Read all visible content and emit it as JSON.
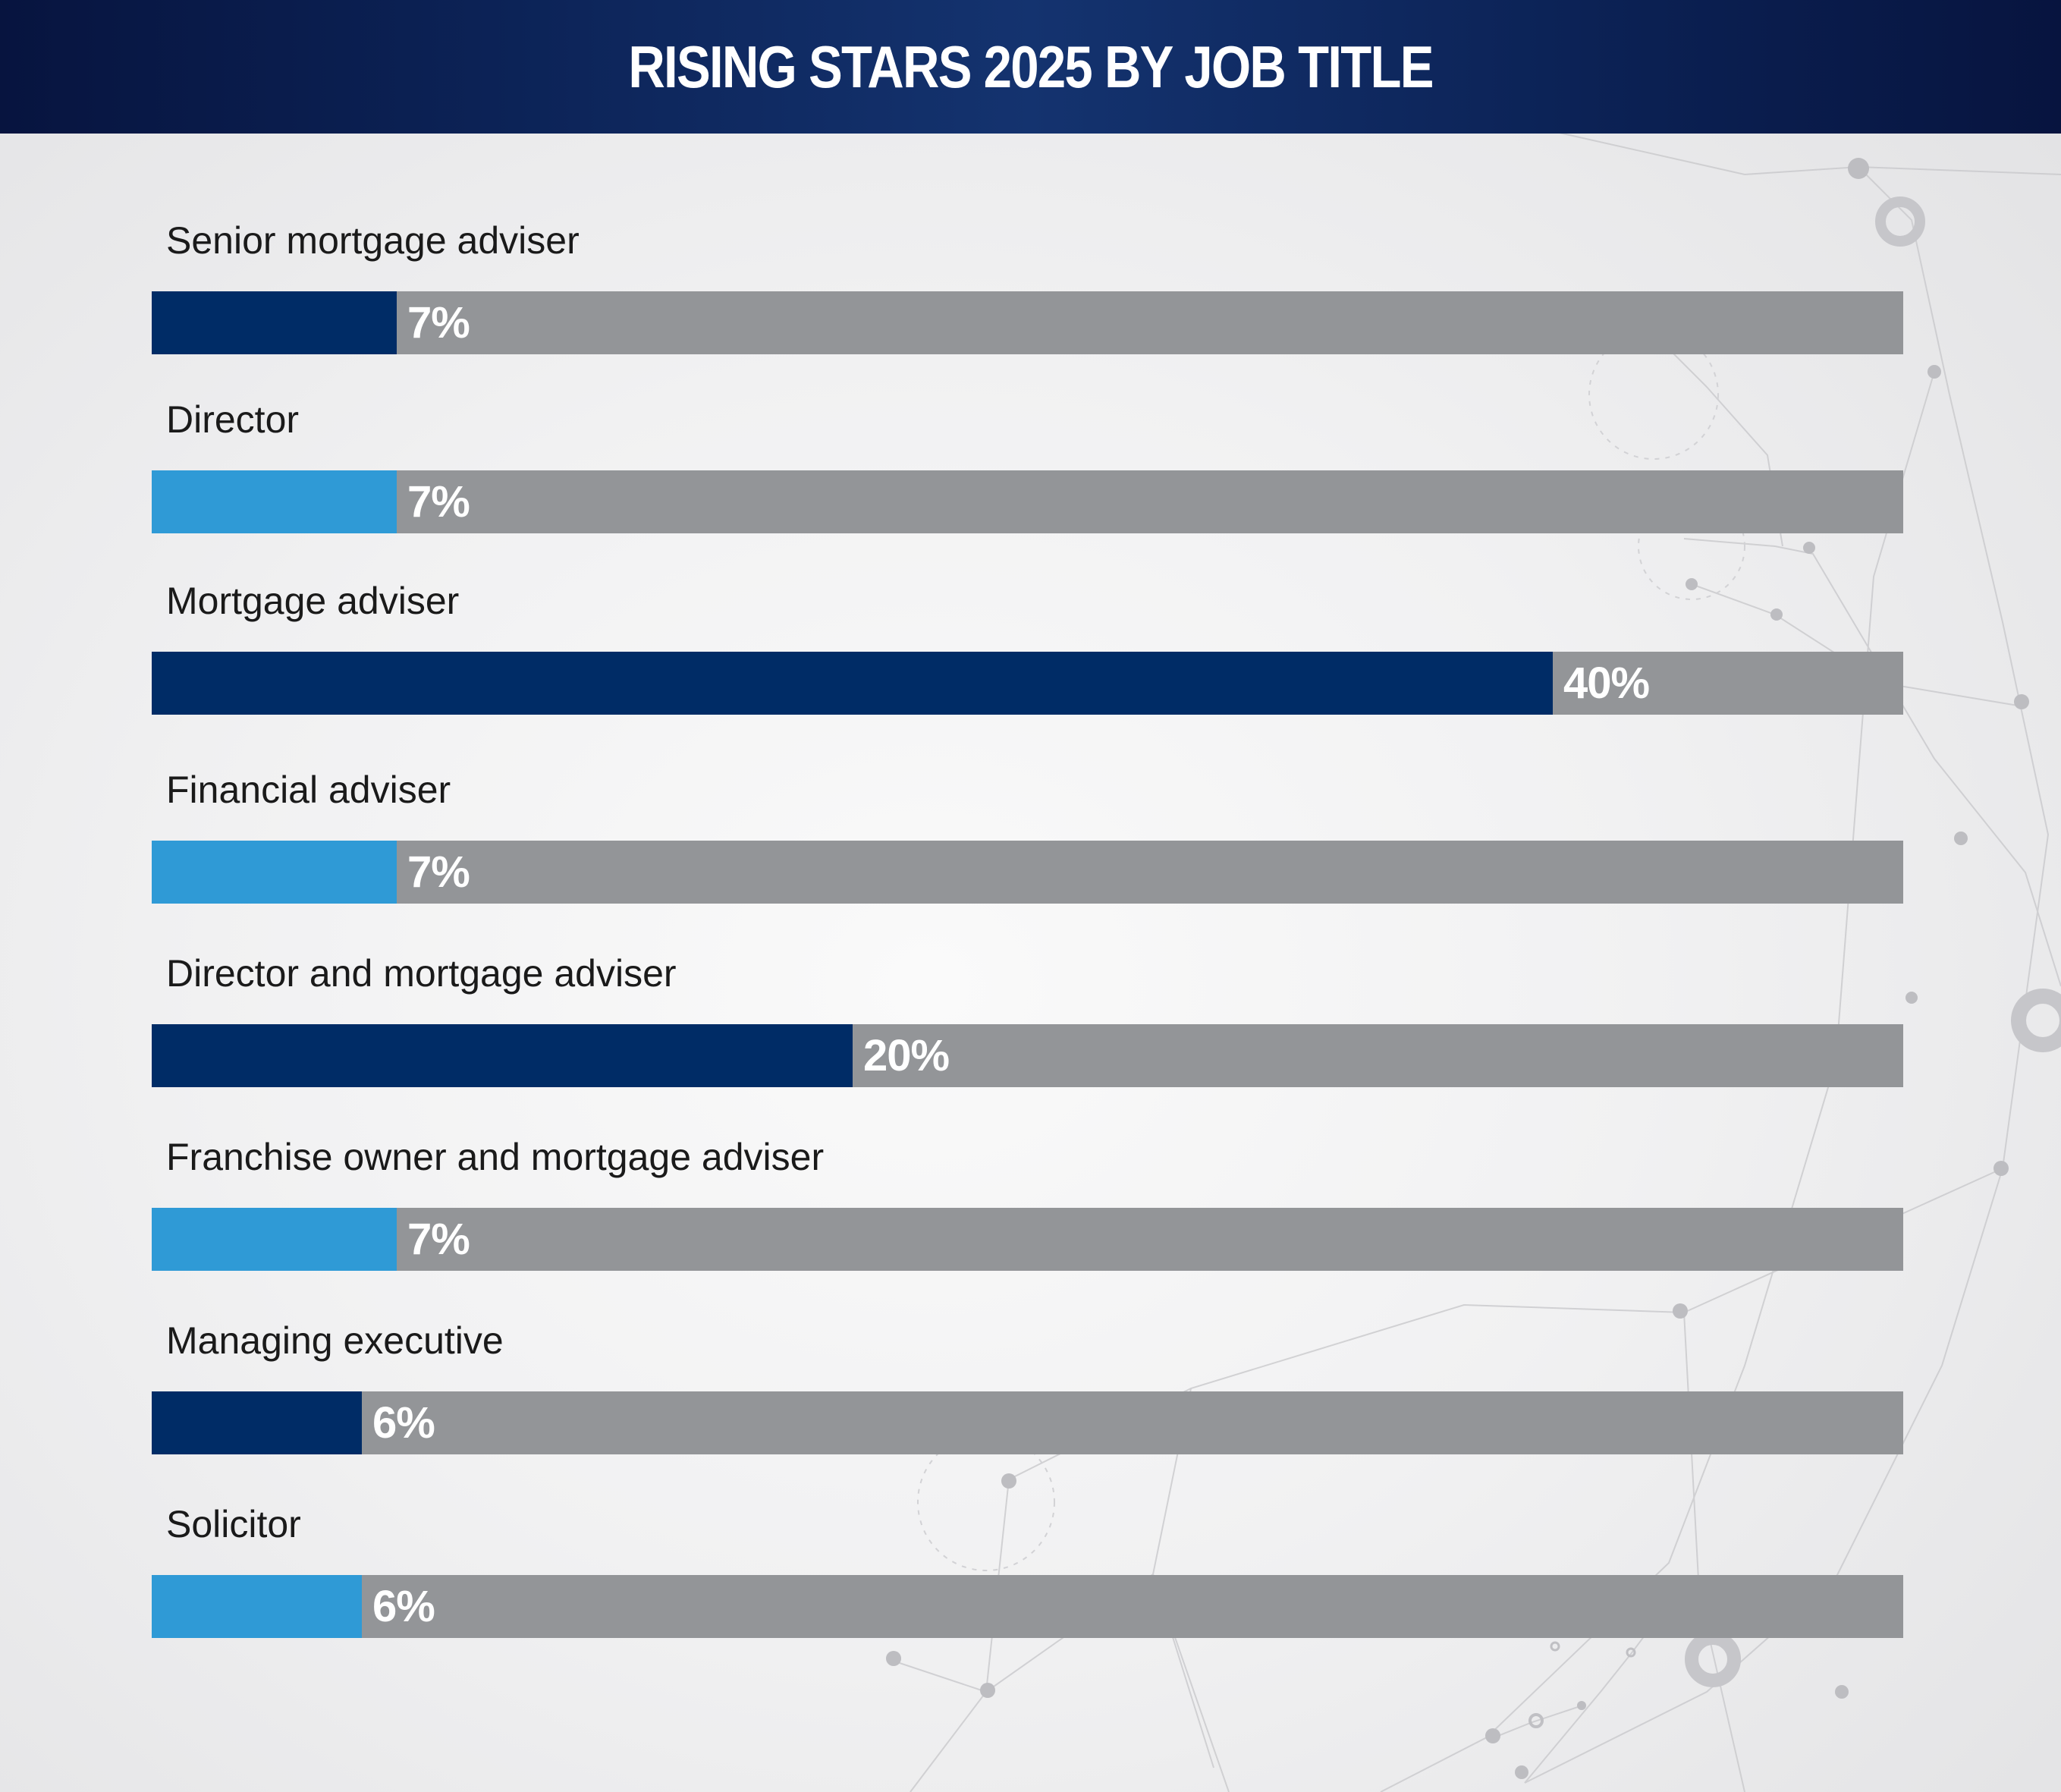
{
  "header": {
    "title": "RISING STARS 2025 BY JOB TITLE"
  },
  "colors": {
    "dark_blue": "#002c66",
    "light_blue": "#2f9ad6",
    "track_gray": "#939598",
    "header_navy": "#0c2357"
  },
  "chart_data": {
    "type": "bar",
    "orientation": "horizontal",
    "title": "RISING STARS 2025 BY JOB TITLE",
    "xlim": [
      0,
      50
    ],
    "grid": false,
    "categories": [
      "Senior mortgage adviser",
      "Director",
      "Mortgage adviser",
      "Financial adviser",
      "Director and mortgage adviser",
      "Franchise owner and mortgage adviser",
      "Managing executive",
      "Solicitor"
    ],
    "values": [
      7,
      7,
      40,
      7,
      20,
      7,
      6,
      6
    ],
    "value_labels": [
      "7%",
      "7%",
      "40%",
      "7%",
      "20%",
      "7%",
      "6%",
      "6%"
    ],
    "bar_colors": [
      "#002c66",
      "#2f9ad6",
      "#002c66",
      "#2f9ad6",
      "#002c66",
      "#2f9ad6",
      "#002c66",
      "#2f9ad6"
    ]
  }
}
